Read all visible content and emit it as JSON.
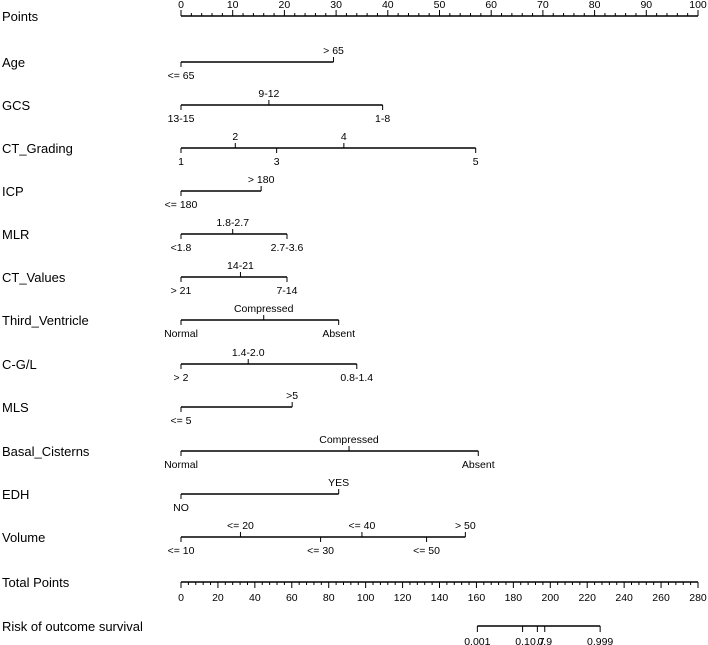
{
  "chart_data": {
    "type": "nomogram",
    "points_axis": {
      "label": "Points",
      "range": [
        0,
        100
      ],
      "major_ticks": [
        0,
        10,
        20,
        30,
        40,
        50,
        60,
        70,
        80,
        90,
        100
      ],
      "tick_labels": [
        "0",
        "10",
        "20",
        "30",
        "40",
        "50",
        "60",
        "70",
        "80",
        "90",
        "100"
      ]
    },
    "variables": [
      {
        "name": "Age",
        "levels": [
          {
            "label": "<= 65",
            "points": 0,
            "side": "below"
          },
          {
            "label": "> 65",
            "points": 29.5,
            "side": "above"
          }
        ]
      },
      {
        "name": "GCS",
        "levels": [
          {
            "label": "13-15",
            "points": 0,
            "side": "below"
          },
          {
            "label": "9-12",
            "points": 17,
            "side": "above"
          },
          {
            "label": "1-8",
            "points": 39,
            "side": "below"
          }
        ]
      },
      {
        "name": "CT_Grading",
        "levels": [
          {
            "label": "1",
            "points": 0,
            "side": "below"
          },
          {
            "label": "2",
            "points": 10.5,
            "side": "above"
          },
          {
            "label": "3",
            "points": 18.5,
            "side": "below"
          },
          {
            "label": "4",
            "points": 31.5,
            "side": "above"
          },
          {
            "label": "5",
            "points": 57,
            "side": "below"
          }
        ]
      },
      {
        "name": "ICP",
        "levels": [
          {
            "label": "<= 180",
            "points": 0,
            "side": "below"
          },
          {
            "label": "> 180",
            "points": 15.5,
            "side": "above"
          }
        ]
      },
      {
        "name": "MLR",
        "levels": [
          {
            "label": "<1.8",
            "points": 0,
            "side": "below"
          },
          {
            "label": "1.8-2.7",
            "points": 10,
            "side": "above"
          },
          {
            "label": "2.7-3.6",
            "points": 20.5,
            "side": "below"
          }
        ]
      },
      {
        "name": "CT_Values",
        "levels": [
          {
            "label": "> 21",
            "points": 0,
            "side": "below"
          },
          {
            "label": "14-21",
            "points": 11.5,
            "side": "above"
          },
          {
            "label": "7-14",
            "points": 20.5,
            "side": "below"
          }
        ]
      },
      {
        "name": "Third_Ventricle",
        "levels": [
          {
            "label": "Normal",
            "points": 0,
            "side": "below"
          },
          {
            "label": "Compressed",
            "points": 16,
            "side": "above"
          },
          {
            "label": "Absent",
            "points": 30.5,
            "side": "below"
          }
        ]
      },
      {
        "name": "C-G/L",
        "levels": [
          {
            "label": "> 2",
            "points": 0,
            "side": "below"
          },
          {
            "label": "1.4-2.0",
            "points": 13,
            "side": "above"
          },
          {
            "label": "0.8-1.4",
            "points": 34,
            "side": "below"
          }
        ]
      },
      {
        "name": "MLS",
        "levels": [
          {
            "label": "<= 5",
            "points": 0,
            "side": "below"
          },
          {
            "label": ">5",
            "points": 21.5,
            "side": "above"
          }
        ]
      },
      {
        "name": "Basal_Cisterns",
        "levels": [
          {
            "label": "Normal",
            "points": 0,
            "side": "below"
          },
          {
            "label": "Compressed",
            "points": 32.5,
            "side": "above"
          },
          {
            "label": "Absent",
            "points": 57.5,
            "side": "below"
          }
        ]
      },
      {
        "name": "EDH",
        "levels": [
          {
            "label": "NO",
            "points": 0,
            "side": "below"
          },
          {
            "label": "YES",
            "points": 30.5,
            "side": "above"
          }
        ]
      },
      {
        "name": "Volume",
        "levels": [
          {
            "label": "<= 10",
            "points": 0,
            "side": "below"
          },
          {
            "label": "<= 20",
            "points": 11.5,
            "side": "above"
          },
          {
            "label": "<= 30",
            "points": 27,
            "side": "below"
          },
          {
            "label": "<= 40",
            "points": 35,
            "side": "above"
          },
          {
            "label": "<= 50",
            "points": 47.5,
            "side": "below"
          },
          {
            "label": "> 50",
            "points": 55,
            "side": "above"
          }
        ]
      }
    ],
    "total_points_axis": {
      "label": "Total Points",
      "range": [
        0,
        280
      ],
      "major_ticks": [
        0,
        20,
        40,
        60,
        80,
        100,
        120,
        140,
        160,
        180,
        200,
        220,
        240,
        260,
        280
      ],
      "tick_labels": [
        "0",
        "20",
        "40",
        "60",
        "80",
        "100",
        "120",
        "140",
        "160",
        "180",
        "200",
        "220",
        "240",
        "260",
        "280"
      ]
    },
    "risk_axis": {
      "label": "Risk of outcome survival",
      "ticks": [
        {
          "label": "0.001",
          "total_points": 160.5
        },
        {
          "label": "0.1",
          "total_points": 185
        },
        {
          "label": "0.7",
          "total_points": 193
        },
        {
          "label": "0.9",
          "total_points": 197
        },
        {
          "label": "0.999",
          "total_points": 227
        }
      ]
    }
  }
}
